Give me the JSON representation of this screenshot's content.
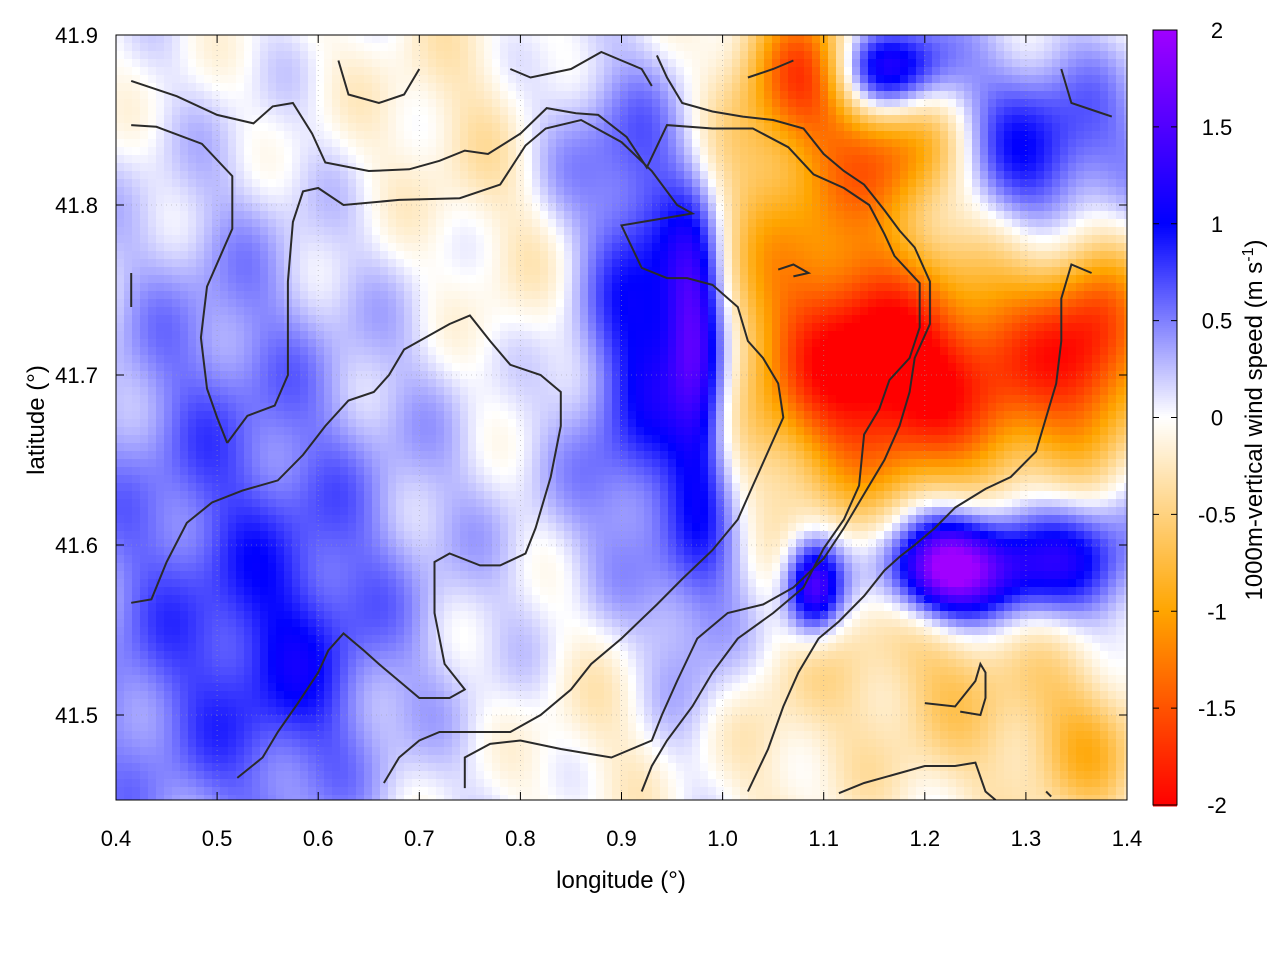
{
  "chart_data": {
    "type": "heatmap",
    "title": "",
    "xlabel": "longitude (°)",
    "ylabel": "latitude (°)",
    "colorbar_label": "1000m-vertical wind speed (m s",
    "colorbar_label_sup": "-1",
    "colorbar_label_end": ")",
    "xlim": [
      0.4,
      1.4
    ],
    "ylim": [
      41.45,
      41.9
    ],
    "x_ticks": [
      0.4,
      0.5,
      0.6,
      0.7,
      0.8,
      0.9,
      1.0,
      1.1,
      1.2,
      1.3,
      1.4
    ],
    "x_tick_labels": [
      "0.4",
      "0.5",
      "0.6",
      "0.7",
      "0.8",
      "0.9",
      "1.0",
      "1.1",
      "1.2",
      "1.3",
      "1.4"
    ],
    "y_ticks": [
      41.5,
      41.6,
      41.7,
      41.8,
      41.9
    ],
    "y_tick_labels": [
      "41.5",
      "41.6",
      "41.7",
      "41.8",
      "41.9"
    ],
    "colorbar_range": [
      -2,
      2
    ],
    "colorbar_ticks": [
      2,
      1.5,
      1,
      0.5,
      0,
      -0.5,
      -1,
      -1.5,
      -2
    ],
    "colorbar_tick_labels": [
      "2",
      "1.5",
      "1",
      "0.5",
      "0",
      "-0.5",
      "-1",
      "-1.5",
      "-2"
    ],
    "colormap": [
      {
        "v": -2,
        "color": "#ff0000"
      },
      {
        "v": -1,
        "color": "#ffa500"
      },
      {
        "v": 0,
        "color": "#ffffff"
      },
      {
        "v": 1,
        "color": "#0000ff"
      },
      {
        "v": 2,
        "color": "#a000ff"
      }
    ],
    "grid": true,
    "field_features": [
      {
        "lon": 0.46,
        "lat": 41.53,
        "sx": 0.12,
        "sy": 0.12,
        "amp": 0.55
      },
      {
        "lon": 0.58,
        "lat": 41.53,
        "sx": 0.06,
        "sy": 0.06,
        "amp": 0.45
      },
      {
        "lon": 0.5,
        "lat": 41.72,
        "sx": 0.08,
        "sy": 0.08,
        "amp": 0.3
      },
      {
        "lon": 0.66,
        "lat": 41.62,
        "sx": 0.12,
        "sy": 0.1,
        "amp": 0.25
      },
      {
        "lon": 0.75,
        "lat": 41.85,
        "sx": 0.08,
        "sy": 0.05,
        "amp": -0.25
      },
      {
        "lon": 0.8,
        "lat": 41.76,
        "sx": 0.05,
        "sy": 0.06,
        "amp": -0.2
      },
      {
        "lon": 0.86,
        "lat": 41.84,
        "sx": 0.05,
        "sy": 0.04,
        "amp": 0.45
      },
      {
        "lon": 0.93,
        "lat": 41.76,
        "sx": 0.04,
        "sy": 0.07,
        "amp": 0.8
      },
      {
        "lon": 0.97,
        "lat": 41.74,
        "sx": 0.02,
        "sy": 0.04,
        "amp": 1.0
      },
      {
        "lon": 0.98,
        "lat": 41.68,
        "sx": 0.02,
        "sy": 0.05,
        "amp": 0.8
      },
      {
        "lon": 0.91,
        "lat": 41.67,
        "sx": 0.05,
        "sy": 0.07,
        "amp": 0.5
      },
      {
        "lon": 1.08,
        "lat": 41.75,
        "sx": 0.07,
        "sy": 0.09,
        "amp": -1.0
      },
      {
        "lon": 1.08,
        "lat": 41.88,
        "sx": 0.04,
        "sy": 0.03,
        "amp": -1.3
      },
      {
        "lon": 1.18,
        "lat": 41.83,
        "sx": 0.05,
        "sy": 0.03,
        "amp": -1.3
      },
      {
        "lon": 1.16,
        "lat": 41.71,
        "sx": 0.06,
        "sy": 0.04,
        "amp": -1.2
      },
      {
        "lon": 1.2,
        "lat": 41.67,
        "sx": 0.09,
        "sy": 0.05,
        "amp": -0.9
      },
      {
        "lon": 1.3,
        "lat": 41.71,
        "sx": 0.07,
        "sy": 0.05,
        "amp": -1.0
      },
      {
        "lon": 1.37,
        "lat": 41.72,
        "sx": 0.04,
        "sy": 0.04,
        "amp": -1.2
      },
      {
        "lon": 1.22,
        "lat": 41.55,
        "sx": 0.08,
        "sy": 0.04,
        "amp": -0.45
      },
      {
        "lon": 1.25,
        "lat": 41.49,
        "sx": 0.1,
        "sy": 0.04,
        "amp": -0.3
      },
      {
        "lon": 1.36,
        "lat": 41.48,
        "sx": 0.04,
        "sy": 0.03,
        "amp": -0.6
      },
      {
        "lon": 1.16,
        "lat": 41.88,
        "sx": 0.04,
        "sy": 0.02,
        "amp": 1.6
      },
      {
        "lon": 1.3,
        "lat": 41.83,
        "sx": 0.08,
        "sy": 0.04,
        "amp": 1.0
      },
      {
        "lon": 1.22,
        "lat": 41.585,
        "sx": 0.04,
        "sy": 0.02,
        "amp": 1.8
      },
      {
        "lon": 1.09,
        "lat": 41.575,
        "sx": 0.02,
        "sy": 0.02,
        "amp": 1.6
      },
      {
        "lon": 1.3,
        "lat": 41.59,
        "sx": 0.08,
        "sy": 0.025,
        "amp": 1.2
      },
      {
        "lon": 1.22,
        "lat": 41.62,
        "sx": 0.16,
        "sy": 0.04,
        "amp": 0.3
      },
      {
        "lon": 0.98,
        "lat": 41.55,
        "sx": 0.04,
        "sy": 0.06,
        "amp": 0.6
      },
      {
        "lon": 1.02,
        "lat": 41.5,
        "sx": 0.06,
        "sy": 0.05,
        "amp": -0.3
      },
      {
        "lon": 0.88,
        "lat": 41.5,
        "sx": 0.05,
        "sy": 0.05,
        "amp": -0.2
      }
    ],
    "contours": [
      [
        [
          0.415,
          41.873
        ],
        [
          0.46,
          41.864
        ],
        [
          0.5,
          41.853
        ],
        [
          0.536,
          41.848
        ],
        [
          0.555,
          41.858
        ],
        [
          0.575,
          41.86
        ],
        [
          0.594,
          41.842
        ],
        [
          0.607,
          41.825
        ],
        [
          0.65,
          41.82
        ],
        [
          0.69,
          41.821
        ],
        [
          0.72,
          41.826
        ],
        [
          0.745,
          41.832
        ],
        [
          0.768,
          41.83
        ],
        [
          0.8,
          41.842
        ],
        [
          0.826,
          41.857
        ],
        [
          0.855,
          41.854
        ],
        [
          0.877,
          41.853
        ],
        [
          0.905,
          41.84
        ],
        [
          0.925,
          41.822
        ],
        [
          0.945,
          41.847
        ],
        [
          0.99,
          41.845
        ],
        [
          1.03,
          41.845
        ],
        [
          1.065,
          41.834
        ],
        [
          1.09,
          41.818
        ],
        [
          1.12,
          41.81
        ],
        [
          1.145,
          41.8
        ],
        [
          1.16,
          41.783
        ],
        [
          1.17,
          41.77
        ],
        [
          1.195,
          41.754
        ],
        [
          1.195,
          41.728
        ],
        [
          1.185,
          41.71
        ],
        [
          1.165,
          41.697
        ],
        [
          1.155,
          41.68
        ],
        [
          1.14,
          41.665
        ],
        [
          1.135,
          41.635
        ],
        [
          1.12,
          41.615
        ],
        [
          1.1,
          41.598
        ],
        [
          1.08,
          41.575
        ],
        [
          1.05,
          41.56
        ],
        [
          1.015,
          41.545
        ],
        [
          0.99,
          41.525
        ],
        [
          0.97,
          41.505
        ],
        [
          0.945,
          41.485
        ],
        [
          0.93,
          41.47
        ],
        [
          0.92,
          41.455
        ]
      ],
      [
        [
          0.415,
          41.847
        ],
        [
          0.44,
          41.846
        ],
        [
          0.485,
          41.836
        ],
        [
          0.515,
          41.817
        ],
        [
          0.515,
          41.786
        ],
        [
          0.49,
          41.752
        ],
        [
          0.484,
          41.722
        ],
        [
          0.49,
          41.692
        ],
        [
          0.5,
          41.675
        ],
        [
          0.51,
          41.66
        ]
      ],
      [
        [
          0.51,
          41.66
        ],
        [
          0.53,
          41.676
        ],
        [
          0.557,
          41.682
        ],
        [
          0.57,
          41.7
        ],
        [
          0.57,
          41.726
        ],
        [
          0.57,
          41.755
        ],
        [
          0.575,
          41.79
        ],
        [
          0.585,
          41.808
        ],
        [
          0.6,
          41.81
        ],
        [
          0.625,
          41.8
        ],
        [
          0.68,
          41.803
        ],
        [
          0.74,
          41.804
        ],
        [
          0.78,
          41.812
        ],
        [
          0.805,
          41.835
        ],
        [
          0.825,
          41.845
        ],
        [
          0.86,
          41.85
        ],
        [
          0.9,
          41.837
        ],
        [
          0.93,
          41.82
        ],
        [
          0.955,
          41.8
        ],
        [
          0.97,
          41.795
        ],
        [
          0.92,
          41.79
        ],
        [
          0.9,
          41.788
        ],
        [
          0.92,
          41.763
        ],
        [
          0.945,
          41.757
        ],
        [
          0.965,
          41.757
        ],
        [
          0.99,
          41.753
        ],
        [
          1.015,
          41.74
        ],
        [
          1.025,
          41.72
        ],
        [
          1.04,
          41.71
        ],
        [
          1.055,
          41.695
        ],
        [
          1.06,
          41.675
        ],
        [
          1.045,
          41.655
        ],
        [
          1.03,
          41.635
        ],
        [
          1.015,
          41.615
        ],
        [
          0.99,
          41.597
        ],
        [
          0.96,
          41.58
        ],
        [
          0.935,
          41.565
        ],
        [
          0.9,
          41.545
        ],
        [
          0.87,
          41.53
        ],
        [
          0.85,
          41.515
        ],
        [
          0.82,
          41.5
        ],
        [
          0.79,
          41.49
        ],
        [
          0.75,
          41.49
        ],
        [
          0.72,
          41.49
        ],
        [
          0.7,
          41.485
        ],
        [
          0.68,
          41.475
        ],
        [
          0.665,
          41.46
        ]
      ],
      [
        [
          0.415,
          41.566
        ],
        [
          0.435,
          41.568
        ],
        [
          0.45,
          41.59
        ],
        [
          0.47,
          41.613
        ],
        [
          0.495,
          41.625
        ],
        [
          0.525,
          41.632
        ],
        [
          0.56,
          41.638
        ],
        [
          0.585,
          41.653
        ],
        [
          0.607,
          41.67
        ],
        [
          0.63,
          41.685
        ],
        [
          0.655,
          41.69
        ],
        [
          0.67,
          41.7
        ],
        [
          0.685,
          41.715
        ],
        [
          0.73,
          41.73
        ],
        [
          0.75,
          41.735
        ],
        [
          0.77,
          41.72
        ],
        [
          0.79,
          41.706
        ],
        [
          0.82,
          41.7
        ],
        [
          0.84,
          41.69
        ],
        [
          0.84,
          41.67
        ],
        [
          0.83,
          41.64
        ],
        [
          0.815,
          41.61
        ],
        [
          0.805,
          41.595
        ],
        [
          0.78,
          41.588
        ],
        [
          0.76,
          41.588
        ],
        [
          0.73,
          41.595
        ],
        [
          0.715,
          41.59
        ],
        [
          0.715,
          41.56
        ],
        [
          0.725,
          41.53
        ],
        [
          0.745,
          41.515
        ],
        [
          0.73,
          41.51
        ],
        [
          0.7,
          41.51
        ],
        [
          0.68,
          41.52
        ],
        [
          0.66,
          41.53
        ],
        [
          0.645,
          41.538
        ],
        [
          0.625,
          41.548
        ],
        [
          0.61,
          41.538
        ],
        [
          0.6,
          41.525
        ],
        [
          0.58,
          41.507
        ],
        [
          0.56,
          41.49
        ],
        [
          0.545,
          41.475
        ],
        [
          0.52,
          41.463
        ]
      ],
      [
        [
          0.745,
          41.457
        ],
        [
          0.745,
          41.475
        ],
        [
          0.77,
          41.483
        ],
        [
          0.8,
          41.485
        ],
        [
          0.84,
          41.48
        ],
        [
          0.87,
          41.477
        ],
        [
          0.89,
          41.475
        ],
        [
          0.91,
          41.48
        ],
        [
          0.93,
          41.485
        ],
        [
          0.94,
          41.5
        ],
        [
          0.955,
          41.52
        ],
        [
          0.975,
          41.545
        ],
        [
          1.005,
          41.56
        ],
        [
          1.04,
          41.565
        ],
        [
          1.07,
          41.575
        ],
        [
          1.1,
          41.592
        ],
        [
          1.12,
          41.61
        ],
        [
          1.14,
          41.63
        ],
        [
          1.16,
          41.65
        ],
        [
          1.175,
          41.67
        ],
        [
          1.185,
          41.69
        ],
        [
          1.19,
          41.71
        ],
        [
          1.205,
          41.73
        ],
        [
          1.205,
          41.755
        ],
        [
          1.19,
          41.775
        ],
        [
          1.175,
          41.785
        ],
        [
          1.16,
          41.797
        ],
        [
          1.14,
          41.812
        ],
        [
          1.12,
          41.82
        ],
        [
          1.1,
          41.83
        ],
        [
          1.08,
          41.845
        ],
        [
          1.05,
          41.85
        ],
        [
          1.02,
          41.852
        ],
        [
          0.99,
          41.855
        ],
        [
          0.96,
          41.86
        ],
        [
          0.945,
          41.875
        ],
        [
          0.935,
          41.888
        ]
      ],
      [
        [
          1.025,
          41.455
        ],
        [
          1.045,
          41.48
        ],
        [
          1.06,
          41.505
        ],
        [
          1.075,
          41.525
        ],
        [
          1.095,
          41.545
        ],
        [
          1.115,
          41.555
        ],
        [
          1.14,
          41.57
        ],
        [
          1.16,
          41.585
        ],
        [
          1.175,
          41.593
        ],
        [
          1.19,
          41.6
        ],
        [
          1.21,
          41.61
        ],
        [
          1.23,
          41.622
        ],
        [
          1.26,
          41.633
        ],
        [
          1.285,
          41.64
        ],
        [
          1.31,
          41.655
        ],
        [
          1.32,
          41.675
        ],
        [
          1.33,
          41.695
        ],
        [
          1.335,
          41.72
        ],
        [
          1.335,
          41.745
        ],
        [
          1.345,
          41.765
        ],
        [
          1.365,
          41.76
        ]
      ],
      [
        [
          1.115,
          41.454
        ],
        [
          1.14,
          41.46
        ],
        [
          1.17,
          41.465
        ],
        [
          1.2,
          41.47
        ],
        [
          1.23,
          41.47
        ],
        [
          1.25,
          41.472
        ],
        [
          1.26,
          41.455
        ],
        [
          1.27,
          41.45
        ]
      ],
      [
        [
          1.2,
          41.507
        ],
        [
          1.23,
          41.505
        ],
        [
          1.25,
          41.52
        ],
        [
          1.255,
          41.53
        ],
        [
          1.26,
          41.525
        ],
        [
          1.26,
          41.51
        ],
        [
          1.255,
          41.5
        ],
        [
          1.235,
          41.502
        ]
      ],
      [
        [
          1.055,
          41.762
        ],
        [
          1.07,
          41.765
        ],
        [
          1.085,
          41.76
        ],
        [
          1.07,
          41.758
        ]
      ],
      [
        [
          0.62,
          41.885
        ],
        [
          0.63,
          41.865
        ],
        [
          0.66,
          41.86
        ],
        [
          0.685,
          41.865
        ],
        [
          0.7,
          41.88
        ]
      ],
      [
        [
          0.79,
          41.88
        ],
        [
          0.81,
          41.875
        ],
        [
          0.85,
          41.88
        ],
        [
          0.88,
          41.89
        ],
        [
          0.9,
          41.885
        ],
        [
          0.92,
          41.88
        ],
        [
          0.93,
          41.87
        ]
      ],
      [
        [
          1.025,
          41.875
        ],
        [
          1.05,
          41.88
        ],
        [
          1.07,
          41.885
        ]
      ],
      [
        [
          1.335,
          41.88
        ],
        [
          1.345,
          41.86
        ],
        [
          1.37,
          41.855
        ],
        [
          1.385,
          41.852
        ]
      ],
      [
        [
          0.415,
          41.76
        ],
        [
          0.415,
          41.74
        ]
      ],
      [
        [
          1.32,
          41.455
        ],
        [
          1.325,
          41.452
        ]
      ]
    ]
  }
}
